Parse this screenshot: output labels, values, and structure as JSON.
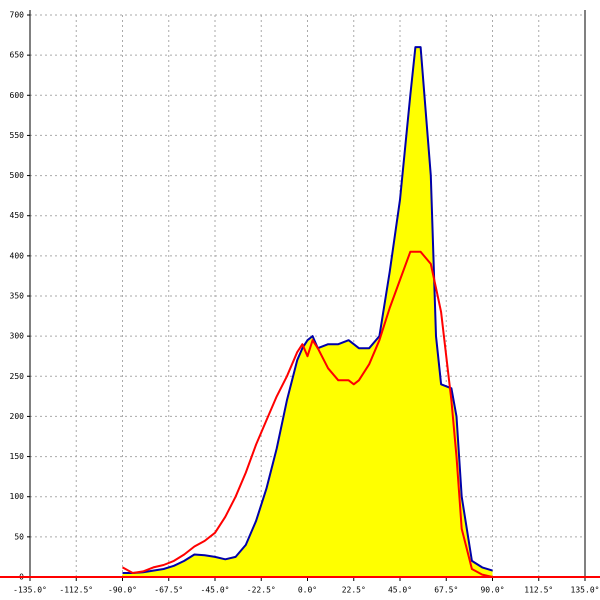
{
  "chart_data": {
    "type": "area",
    "x": [
      -90,
      -85,
      -80,
      -75,
      -70,
      -65,
      -60,
      -55,
      -50,
      -45,
      -40,
      -35,
      -30,
      -25,
      -20,
      -15,
      -10,
      -5,
      -2.5,
      0,
      2.5,
      5,
      10,
      15,
      20,
      22.5,
      25,
      30,
      35,
      40,
      45,
      50,
      52.5,
      55,
      60,
      62.5,
      65,
      70,
      72.5,
      75,
      80,
      85,
      90
    ],
    "series": [
      {
        "color": "#0000aa",
        "fill": "#ffff00",
        "values": [
          5,
          5,
          6,
          8,
          10,
          14,
          20,
          28,
          27,
          25,
          22,
          25,
          40,
          70,
          110,
          160,
          220,
          270,
          285,
          295,
          300,
          285,
          290,
          290,
          295,
          290,
          285,
          285,
          300,
          380,
          470,
          600,
          660,
          660,
          500,
          300,
          240,
          235,
          200,
          100,
          20,
          12,
          8
        ]
      },
      {
        "color": "#ff0000",
        "values": [
          12,
          5,
          7,
          12,
          15,
          20,
          28,
          38,
          45,
          55,
          75,
          100,
          130,
          165,
          195,
          225,
          250,
          280,
          290,
          275,
          295,
          285,
          260,
          245,
          245,
          240,
          245,
          265,
          295,
          335,
          370,
          405,
          405,
          405,
          390,
          360,
          330,
          220,
          150,
          60,
          10,
          3,
          0
        ]
      }
    ],
    "xlim": [
      -135,
      135
    ],
    "ylim": [
      0,
      700
    ],
    "xticks": [
      {
        "value": -135,
        "label": "-135.0°"
      },
      {
        "value": -112.5,
        "label": "-112.5°"
      },
      {
        "value": -90,
        "label": "-90.0°"
      },
      {
        "value": -67.5,
        "label": "-67.5°"
      },
      {
        "value": -45,
        "label": "-45.0°"
      },
      {
        "value": -22.5,
        "label": "-22.5°"
      },
      {
        "value": 0,
        "label": "0.0°"
      },
      {
        "value": 22.5,
        "label": "22.5°"
      },
      {
        "value": 45,
        "label": "45.0°"
      },
      {
        "value": 67.5,
        "label": "67.5°"
      },
      {
        "value": 90,
        "label": "90.0°"
      },
      {
        "value": 112.5,
        "label": "112.5°"
      },
      {
        "value": 135,
        "label": "135.0°"
      }
    ],
    "yticks": [
      0,
      50,
      100,
      150,
      200,
      250,
      300,
      350,
      400,
      450,
      500,
      550,
      600,
      650,
      700
    ],
    "grid": true
  }
}
